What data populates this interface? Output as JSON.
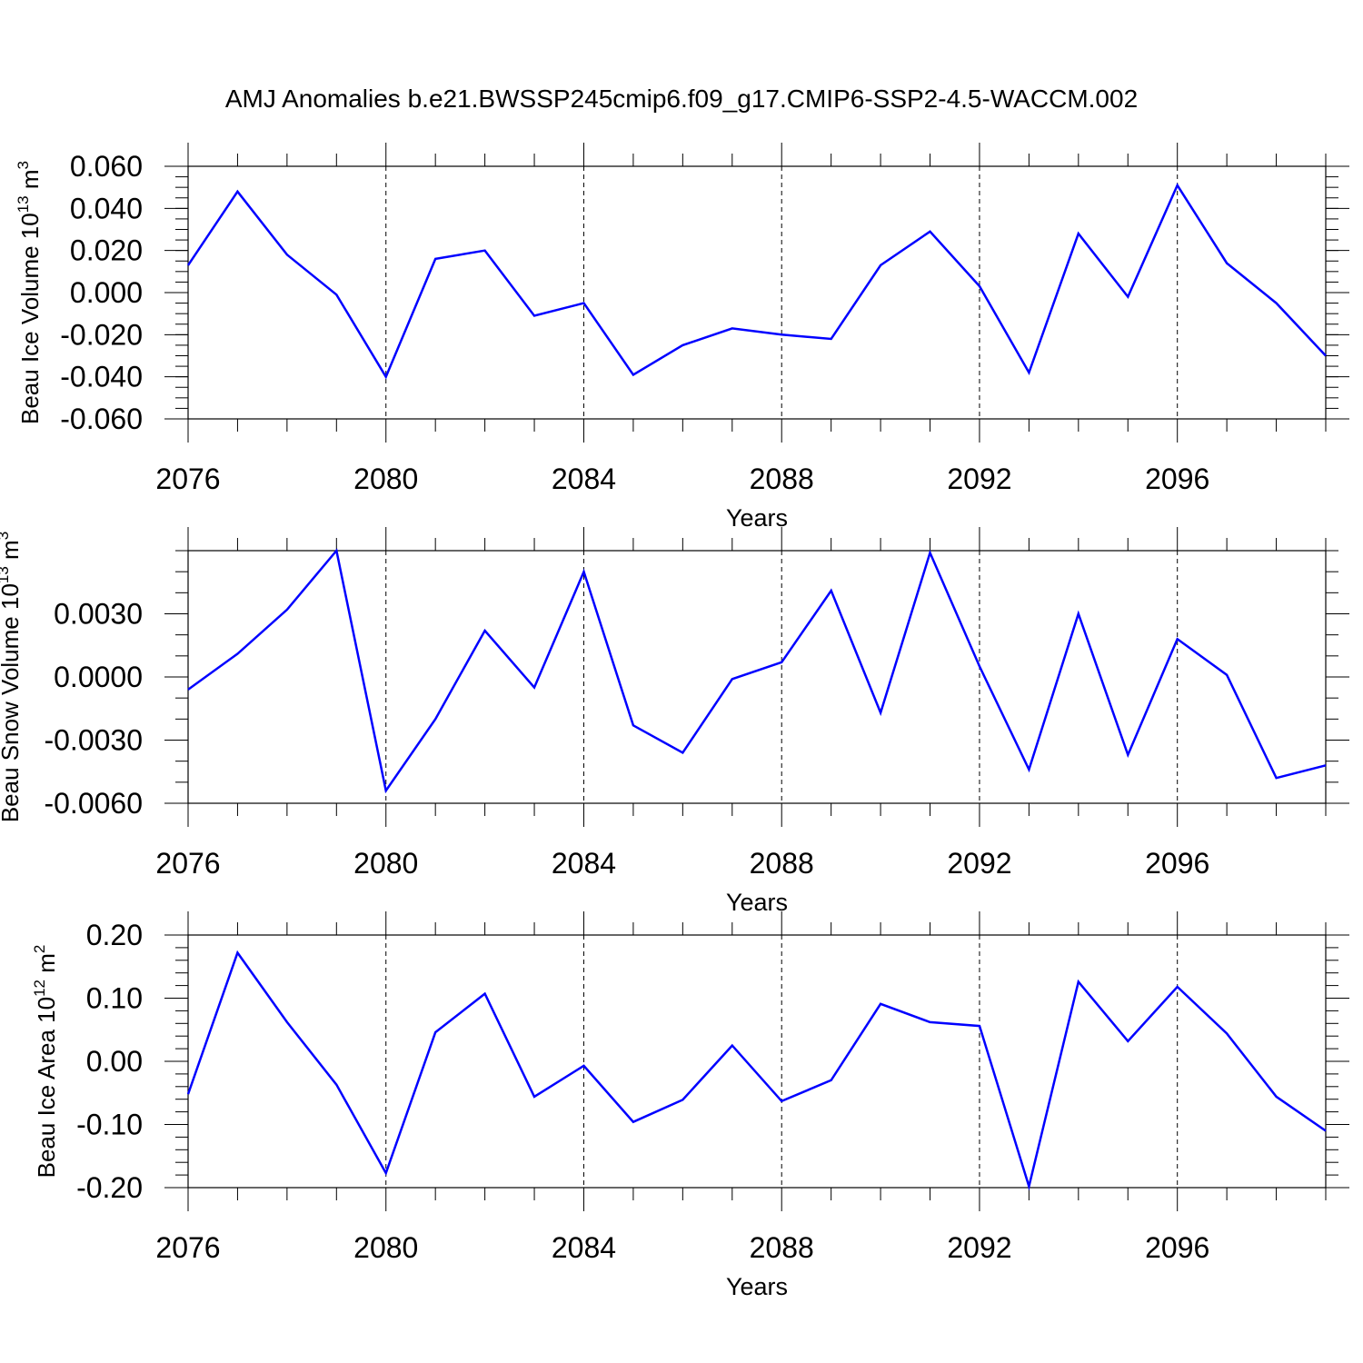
{
  "figure": {
    "title": "AMJ Anomalies b.e21.BWSSP245cmip6.f09_g17.CMIP6-SSP2-4.5-WACCM.002"
  },
  "chart_data": [
    {
      "type": "line",
      "title": "",
      "xlabel": "Years",
      "ylabel": {
        "prefix": "Beau Ice Volume 10",
        "exp": "13",
        "unit": " m",
        "unit_exp": "3"
      },
      "xlim": [
        2076,
        2099
      ],
      "ylim": [
        -0.06,
        0.06
      ],
      "grid": "vertical dashed at major x ticks",
      "x_ticks": [
        2076,
        2080,
        2084,
        2088,
        2092,
        2096
      ],
      "x_tick_labels": [
        "2076",
        "2080",
        "2084",
        "2088",
        "2092",
        "2096"
      ],
      "y_ticks": [
        -0.06,
        -0.04,
        -0.02,
        0.0,
        0.02,
        0.04,
        0.06
      ],
      "y_tick_labels": [
        "-0.060",
        "-0.040",
        "-0.020",
        "0.000",
        "0.020",
        "0.040",
        "0.060"
      ],
      "y_minor_step": 0.005,
      "color": "#0000ff",
      "x": [
        2076,
        2077,
        2078,
        2079,
        2080,
        2081,
        2082,
        2083,
        2084,
        2085,
        2086,
        2087,
        2088,
        2089,
        2090,
        2091,
        2092,
        2093,
        2094,
        2095,
        2096,
        2097,
        2098,
        2099
      ],
      "y": [
        0.013,
        0.048,
        0.018,
        -0.001,
        -0.04,
        0.016,
        0.02,
        -0.011,
        -0.005,
        -0.039,
        -0.025,
        -0.017,
        -0.02,
        -0.022,
        0.013,
        0.029,
        0.003,
        -0.038,
        0.028,
        -0.002,
        0.051,
        0.014,
        -0.005,
        -0.03
      ]
    },
    {
      "type": "line",
      "title": "",
      "xlabel": "Years",
      "ylabel": {
        "prefix": "Beau Snow Volume 10",
        "exp": "13",
        "unit": " m",
        "unit_exp": "3"
      },
      "xlim": [
        2076,
        2099
      ],
      "ylim": [
        -0.006,
        0.006
      ],
      "grid": "vertical dashed at major x ticks",
      "x_ticks": [
        2076,
        2080,
        2084,
        2088,
        2092,
        2096
      ],
      "x_tick_labels": [
        "2076",
        "2080",
        "2084",
        "2088",
        "2092",
        "2096"
      ],
      "y_ticks": [
        -0.006,
        -0.003,
        0.0,
        0.003
      ],
      "y_tick_labels": [
        "-0.0060",
        "-0.0030",
        "0.0000",
        "0.0030"
      ],
      "y_minor_step": 0.001,
      "color": "#0000ff",
      "x": [
        2076,
        2077,
        2078,
        2079,
        2080,
        2081,
        2082,
        2083,
        2084,
        2085,
        2086,
        2087,
        2088,
        2089,
        2090,
        2091,
        2092,
        2093,
        2094,
        2095,
        2096,
        2097,
        2098,
        2099
      ],
      "y": [
        -0.0006,
        0.0011,
        0.0032,
        0.006,
        -0.0054,
        -0.002,
        0.0022,
        -0.0005,
        0.005,
        -0.0023,
        -0.0036,
        -0.0001,
        0.0007,
        0.0041,
        -0.0017,
        0.0059,
        0.0005,
        -0.0044,
        0.003,
        -0.0037,
        0.0018,
        0.0001,
        -0.0048,
        -0.0042
      ]
    },
    {
      "type": "line",
      "title": "",
      "xlabel": "Years",
      "ylabel": {
        "prefix": "Beau Ice Area 10",
        "exp": "12",
        "unit": " m",
        "unit_exp": "2"
      },
      "xlim": [
        2076,
        2099
      ],
      "ylim": [
        -0.2,
        0.2
      ],
      "grid": "vertical dashed at major x ticks",
      "x_ticks": [
        2076,
        2080,
        2084,
        2088,
        2092,
        2096
      ],
      "x_tick_labels": [
        "2076",
        "2080",
        "2084",
        "2088",
        "2092",
        "2096"
      ],
      "y_ticks": [
        -0.2,
        -0.1,
        0.0,
        0.1,
        0.2
      ],
      "y_tick_labels": [
        "-0.20",
        "-0.10",
        "0.00",
        "0.10",
        "0.20"
      ],
      "y_minor_step": 0.02,
      "color": "#0000ff",
      "x": [
        2076,
        2077,
        2078,
        2079,
        2080,
        2081,
        2082,
        2083,
        2084,
        2085,
        2086,
        2087,
        2088,
        2089,
        2090,
        2091,
        2092,
        2093,
        2094,
        2095,
        2096,
        2097,
        2098,
        2099
      ],
      "y": [
        -0.052,
        0.172,
        0.062,
        -0.037,
        -0.177,
        0.046,
        0.107,
        -0.056,
        -0.007,
        -0.096,
        -0.061,
        0.025,
        -0.063,
        -0.03,
        0.091,
        0.062,
        0.056,
        -0.198,
        0.126,
        0.032,
        0.118,
        0.044,
        -0.056,
        -0.11
      ]
    }
  ]
}
